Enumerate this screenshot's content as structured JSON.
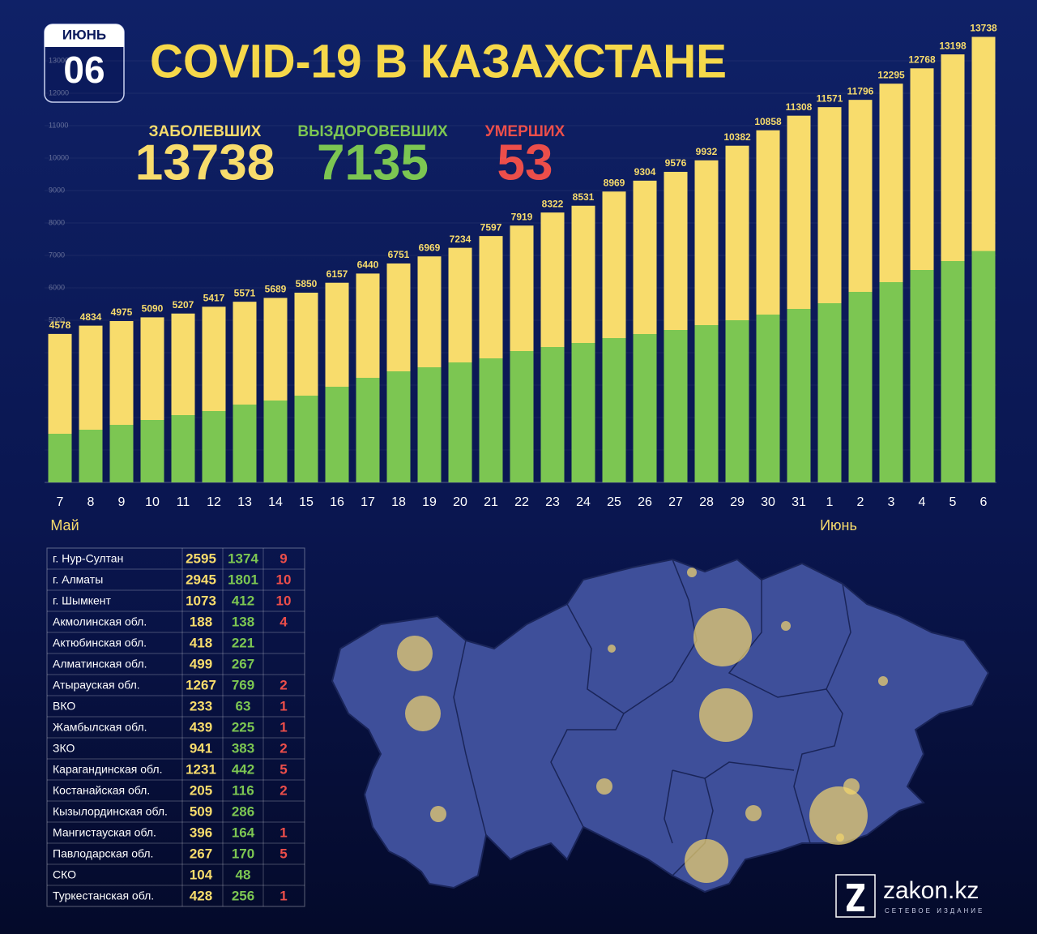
{
  "header": {
    "month": "ИЮНЬ",
    "day": "06",
    "title": "COVID-19 В КАЗАХСТАНЕ"
  },
  "summary": [
    {
      "label": "ЗАБОЛЕВШИХ",
      "value": 13738,
      "color": "#f8dc6c"
    },
    {
      "label": "ВЫЗДОРОВЕВШИХ",
      "value": 7135,
      "color": "#7cc652"
    },
    {
      "label": "УМЕРШИХ",
      "value": 53,
      "color": "#ec4e4a"
    }
  ],
  "chart_data": {
    "type": "bar",
    "categories": [
      "7",
      "8",
      "9",
      "10",
      "11",
      "12",
      "13",
      "14",
      "15",
      "16",
      "17",
      "18",
      "19",
      "20",
      "21",
      "22",
      "23",
      "24",
      "25",
      "26",
      "27",
      "28",
      "29",
      "30",
      "31",
      "1",
      "2",
      "3",
      "4",
      "5",
      "6"
    ],
    "series": [
      {
        "color": "#f8dc6c",
        "values": [
          4578,
          4834,
          4975,
          5090,
          5207,
          5417,
          5571,
          5689,
          5850,
          6157,
          6440,
          6751,
          6969,
          7234,
          7597,
          7919,
          8322,
          8531,
          8969,
          9304,
          9576,
          9932,
          10382,
          10858,
          11308,
          11571,
          11796,
          12295,
          12768,
          13198,
          13738
        ]
      },
      {
        "color": "#7cc652",
        "values": [
          1500,
          1625,
          1775,
          1925,
          2075,
          2200,
          2400,
          2525,
          2675,
          2950,
          3225,
          3425,
          3550,
          3700,
          3825,
          4050,
          4175,
          4300,
          4450,
          4575,
          4700,
          4850,
          5000,
          5175,
          5350,
          5525,
          5875,
          6175,
          6550,
          6825,
          7135
        ]
      }
    ],
    "annotations": [
      "Май",
      "Июнь"
    ],
    "ylim": [
      0,
      14000
    ],
    "yticks": [
      5000,
      6000,
      7000,
      8000,
      9000,
      10000,
      11000,
      12000,
      13000
    ]
  },
  "table": {
    "rows": [
      [
        "г. Нур-Султан",
        2595,
        1374,
        9
      ],
      [
        "г. Алматы",
        2945,
        1801,
        10
      ],
      [
        "г. Шымкент",
        1073,
        412,
        10
      ],
      [
        "Акмолинская обл.",
        188,
        138,
        4
      ],
      [
        "Актюбинская обл.",
        418,
        221,
        null
      ],
      [
        "Алматинская обл.",
        499,
        267,
        null
      ],
      [
        "Атырауская обл.",
        1267,
        769,
        2
      ],
      [
        "ВКО",
        233,
        63,
        1
      ],
      [
        "Жамбылская обл.",
        439,
        225,
        1
      ],
      [
        "ЗКО",
        941,
        383,
        2
      ],
      [
        "Карагандинская обл.",
        1231,
        442,
        5
      ],
      [
        "Костанайская обл.",
        205,
        116,
        2
      ],
      [
        "Кызылординская обл.",
        509,
        286,
        null
      ],
      [
        "Мангистауская обл.",
        396,
        164,
        1
      ],
      [
        "Павлодарская обл.",
        267,
        170,
        5
      ],
      [
        "СКО",
        104,
        48,
        null
      ],
      [
        "Туркестанская обл.",
        428,
        256,
        1
      ]
    ]
  },
  "logo": {
    "name": "zakon.kz",
    "tagline": "СЕТЕВОЕ ИЗДАНИЕ"
  }
}
